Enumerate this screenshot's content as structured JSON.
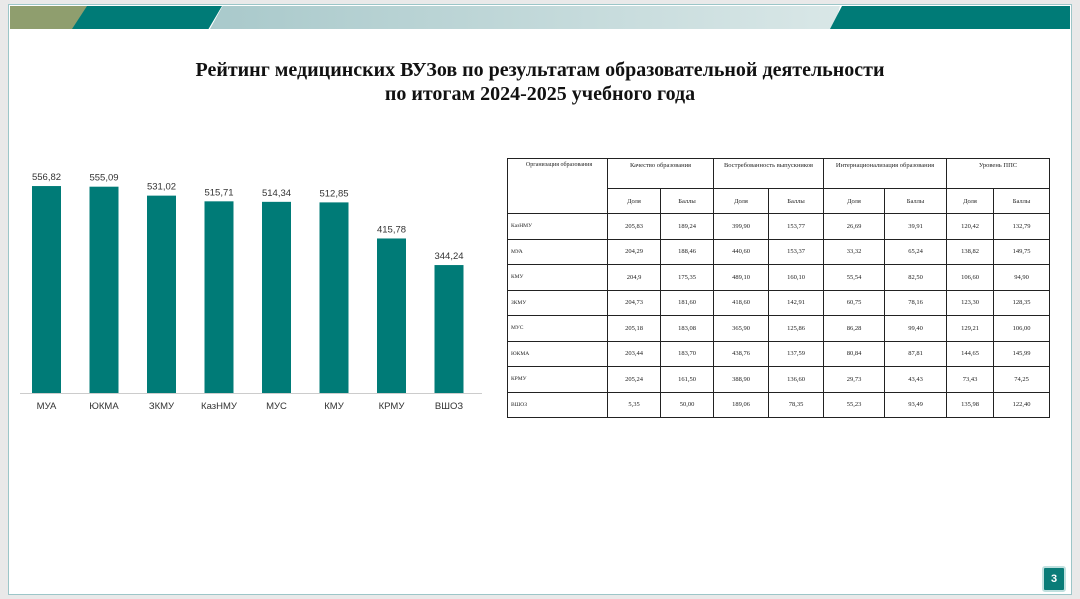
{
  "title_line1": "Рейтинг медицинских ВУЗов по результатам образовательной деятельности",
  "title_line2": "по итогам 2024-2025 учебного года",
  "colors": {
    "bar": "#007b77",
    "banner_teal": "#007b77",
    "banner_olive": "#8f9e6e"
  },
  "chart_data": {
    "type": "bar",
    "categories": [
      "МУА",
      "ЮКМА",
      "ЗКМУ",
      "КазНМУ",
      "МУС",
      "КМУ",
      "КРМУ",
      "ВШОЗ"
    ],
    "values": [
      556.82,
      555.09,
      531.02,
      515.71,
      514.34,
      512.85,
      415.78,
      344.24
    ],
    "labels": [
      "556,82",
      "555,09",
      "531,02",
      "515,71",
      "514,34",
      "512,85",
      "415,78",
      "344,24"
    ],
    "ylim": [
      0,
      600
    ],
    "grid": false
  },
  "table": {
    "org_header": "Организация образования",
    "groups": [
      "Качество образования",
      "Востребованность выпускников",
      "Интернационализация образования",
      "Уровень ППС"
    ],
    "subheaders": [
      "Доля",
      "Баллы",
      "Доля",
      "Баллы",
      "Доля",
      "Баллы",
      "Доля",
      "Баллы"
    ],
    "rows": [
      {
        "org": "КазНМУ",
        "values": [
          "205,83",
          "189,24",
          "399,90",
          "153,77",
          "26,69",
          "39,91",
          "120,42",
          "132,79"
        ]
      },
      {
        "org": "МУА",
        "values": [
          "204,29",
          "188,46",
          "440,60",
          "153,37",
          "33,32",
          "65,24",
          "138,82",
          "149,75"
        ]
      },
      {
        "org": "КМУ",
        "values": [
          "204,9",
          "175,35",
          "489,10",
          "160,10",
          "55,54",
          "82,50",
          "106,60",
          "94,90"
        ]
      },
      {
        "org": "ЗКМУ",
        "values": [
          "204,73",
          "181,60",
          "418,60",
          "142,91",
          "60,75",
          "78,16",
          "123,30",
          "128,35"
        ]
      },
      {
        "org": "МУС",
        "values": [
          "205,18",
          "183,08",
          "365,90",
          "125,86",
          "86,28",
          "99,40",
          "129,21",
          "106,00"
        ]
      },
      {
        "org": "ЮКМА",
        "values": [
          "203,44",
          "183,70",
          "438,76",
          "137,59",
          "80,84",
          "87,81",
          "144,65",
          "145,99"
        ]
      },
      {
        "org": "КРМУ",
        "values": [
          "205,24",
          "161,50",
          "388,90",
          "136,60",
          "29,73",
          "43,43",
          "73,43",
          "74,25"
        ]
      },
      {
        "org": "ВШОЗ",
        "values": [
          "5,35",
          "50,00",
          "189,06",
          "78,35",
          "55,23",
          "93,49",
          "135,98",
          "122,40"
        ]
      }
    ]
  },
  "page_number": "3"
}
